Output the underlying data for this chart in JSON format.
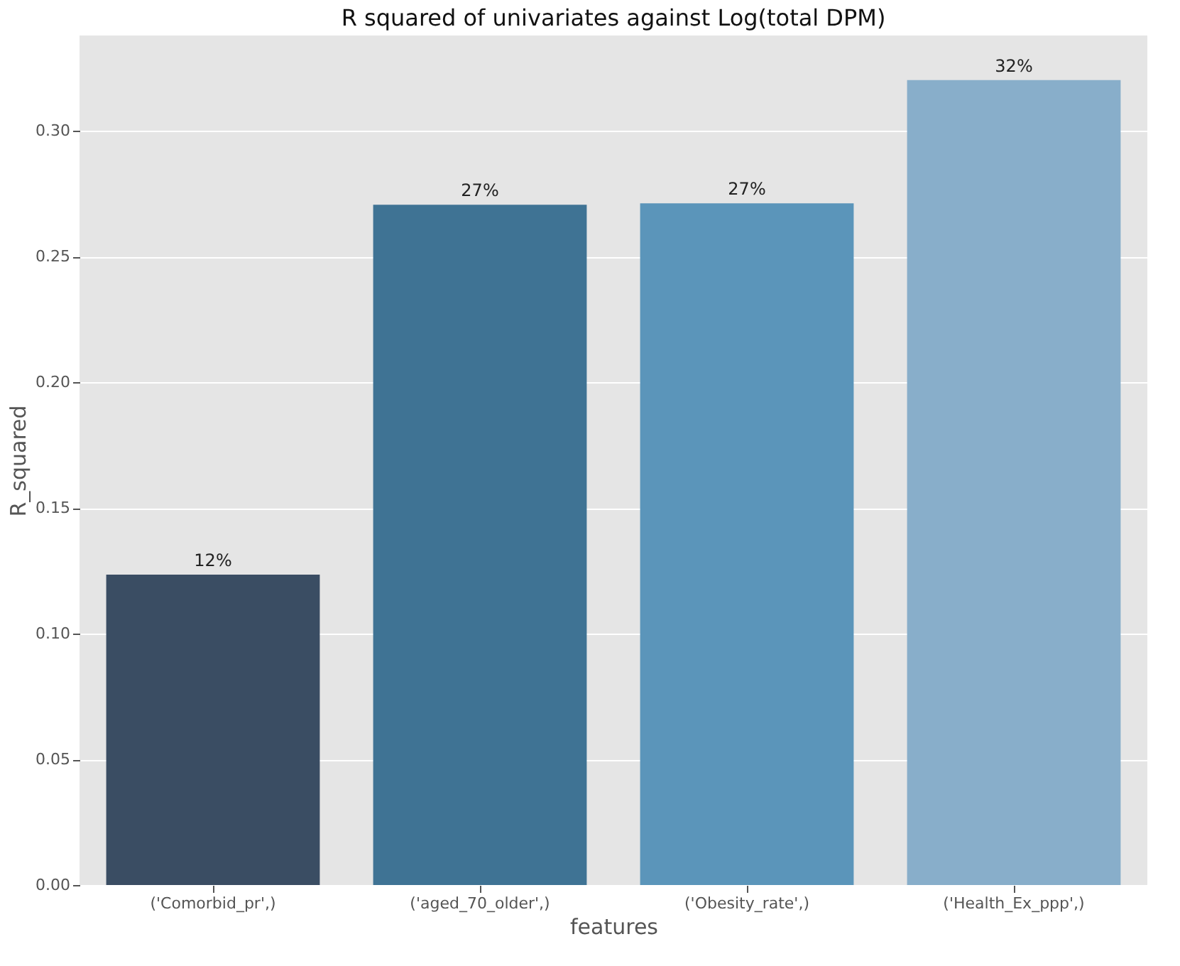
{
  "chart_data": {
    "type": "bar",
    "title": "R squared of univariates against Log(total DPM)",
    "xlabel": "features",
    "ylabel": "R_squared",
    "categories": [
      "('Comorbid_pr',)",
      "('aged_70_older',)",
      "('Obesity_rate',)",
      "('Health_Ex_ppp',)"
    ],
    "values": [
      0.1235,
      0.2707,
      0.2712,
      0.3203
    ],
    "colors": [
      "#3a4d63",
      "#3f7394",
      "#5b95ba",
      "#88aeca"
    ],
    "value_labels": [
      "12%",
      "27%",
      "27%",
      "32%"
    ],
    "ylim": [
      0,
      0.338
    ],
    "yticks": [
      {
        "value": 0,
        "label": "0.00"
      },
      {
        "value": 0.05,
        "label": "0.05"
      },
      {
        "value": 0.1,
        "label": "0.10"
      },
      {
        "value": 0.15,
        "label": "0.15"
      },
      {
        "value": 0.2,
        "label": "0.20"
      },
      {
        "value": 0.25,
        "label": "0.25"
      },
      {
        "value": 0.3,
        "label": "0.30"
      }
    ],
    "grid": "y"
  }
}
